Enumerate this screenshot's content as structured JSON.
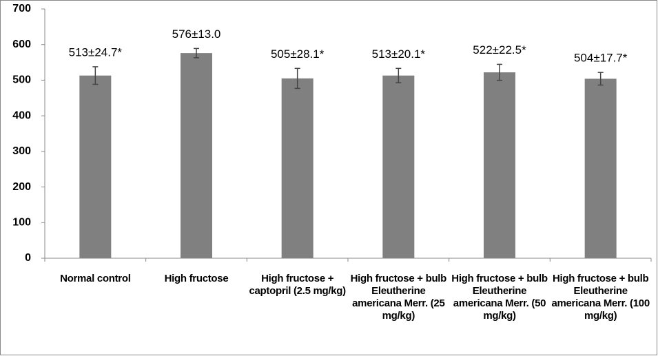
{
  "chart_data": {
    "type": "bar",
    "categories": [
      "Normal control",
      "High fructose",
      "High fructose + captopril (2.5 mg/kg)",
      "High fructose + bulb Eleutherine americana Merr. (25 mg/kg)",
      "High fructose + bulb Eleutherine americana Merr. (50 mg/kg)",
      "High fructose + bulb Eleutherine americana Merr. (100 mg/kg)"
    ],
    "values": [
      513,
      576,
      505,
      513,
      522,
      504
    ],
    "errors": [
      24.7,
      13.0,
      28.1,
      20.1,
      22.5,
      17.7
    ],
    "value_labels": [
      "513±24.7*",
      "576±13.0",
      "505±28.1*",
      "513±20.1*",
      "522±22.5*",
      "504±17.7*"
    ],
    "color": "#808080",
    "ylim": [
      0,
      700
    ],
    "yticks": [
      0,
      100,
      200,
      300,
      400,
      500,
      600,
      700
    ],
    "grid": false
  }
}
